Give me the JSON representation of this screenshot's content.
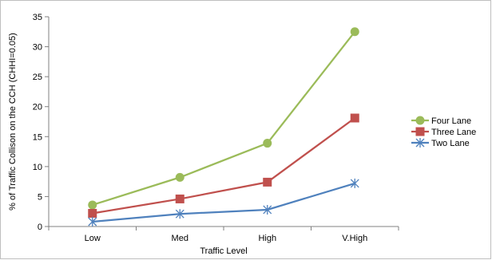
{
  "chart_data": {
    "type": "line",
    "categories": [
      "Low",
      "Med",
      "High",
      "V.High"
    ],
    "xlabel": "Traffic Level",
    "ylabel": "% of Traffic Collison on the CCH (CHHI=0.05)",
    "ylim": [
      0,
      35
    ],
    "yticks": [
      "0",
      "5",
      "10",
      "15",
      "20",
      "25",
      "30",
      "35"
    ],
    "grid": false,
    "legend": "right",
    "series": [
      {
        "name": "Four Lane",
        "values": [
          3.6,
          8.2,
          13.9,
          32.5
        ],
        "color": "#9bbb59",
        "marker": "circle"
      },
      {
        "name": "Three Lane",
        "values": [
          2.2,
          4.6,
          7.4,
          18.1
        ],
        "color": "#c0504d",
        "marker": "square"
      },
      {
        "name": "Two Lane",
        "values": [
          0.8,
          2.1,
          2.8,
          7.2
        ],
        "color": "#4f81bd",
        "marker": "asterisk"
      }
    ]
  }
}
